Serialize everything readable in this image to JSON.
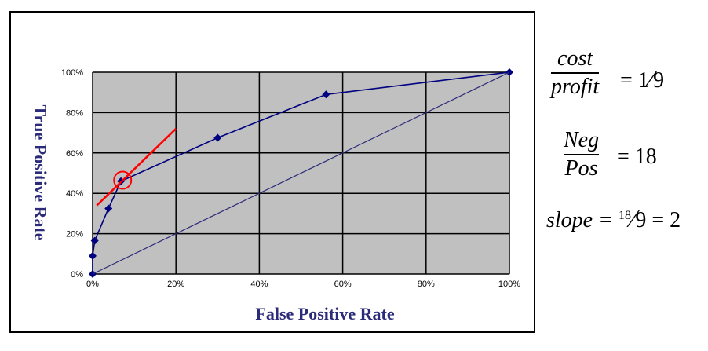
{
  "chart_data": {
    "type": "line",
    "xlabel": "False Positive Rate",
    "ylabel": "True Positive Rate",
    "xlim": [
      0,
      100
    ],
    "ylim": [
      0,
      100
    ],
    "x_ticks": [
      "0%",
      "20%",
      "40%",
      "60%",
      "80%",
      "100%"
    ],
    "y_ticks": [
      "0%",
      "20%",
      "40%",
      "60%",
      "80%",
      "100%"
    ],
    "grid": true,
    "plot_background": "#c0c0c0",
    "series": [
      {
        "color": "#000080",
        "marker": "diamond",
        "x": [
          0,
          0,
          0.5,
          3.8,
          6.8,
          30,
          56,
          100
        ],
        "y": [
          0,
          9,
          16.5,
          32.5,
          46,
          67.5,
          89,
          100
        ]
      },
      {
        "color": "#2b2b7a",
        "marker": "none",
        "x": [
          0,
          100
        ],
        "y": [
          0,
          100
        ]
      }
    ],
    "annotations": {
      "tangent_line": {
        "color": "#ff0000",
        "x": [
          1,
          20
        ],
        "y": [
          34,
          72
        ]
      },
      "highlight_circle": {
        "color": "#ff0000",
        "x": 7.2,
        "y": 46.5
      }
    }
  },
  "formulas": {
    "cost_num": "cost",
    "cost_den": "profit",
    "cost_eq": "= ",
    "cost_rhs_num": "1",
    "cost_rhs_slash": "⁄",
    "cost_rhs_den": "9",
    "neg_num": "Neg",
    "neg_den": "Pos",
    "neg_rhs": "= 18",
    "slope_lhs": "slope = ",
    "slope_num": "18",
    "slope_slash": "⁄",
    "slope_den": "9",
    "slope_rhs": " = 2"
  }
}
